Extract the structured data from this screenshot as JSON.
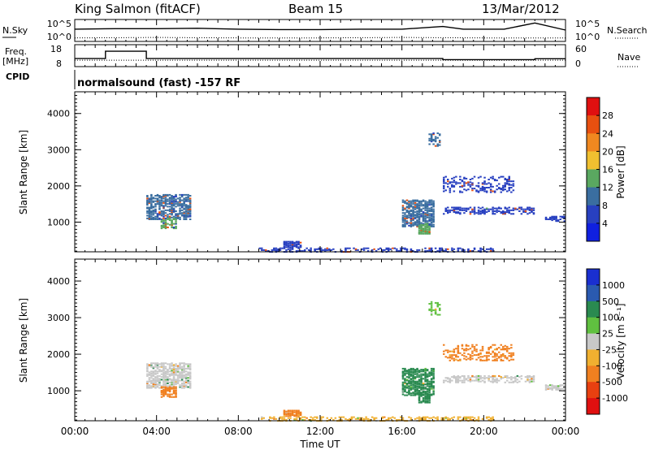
{
  "header": {
    "station": "King Salmon (fitACF)",
    "beam": "Beam 15",
    "date": "13/Mar/2012"
  },
  "labels": {
    "n_sky": "N.Sky",
    "n_search": "N.Search",
    "freq": "Freq.",
    "mhz": "[MHz]",
    "nave": "Nave",
    "cpid": "CPID",
    "cpid_value": "normalsound (fast) -157 RF",
    "time_axis": "Time UT",
    "slant_range": "Slant Range [km]",
    "power_bar": "Power [dB]",
    "velocity_bar": "Velocity [m s⁻¹]"
  },
  "noise_axis": {
    "left_ticks": [
      "10^5",
      "10^0"
    ],
    "right_ticks": [
      "10^5",
      "10^0"
    ]
  },
  "freq_axis": {
    "left_ticks": [
      "18",
      "8"
    ],
    "right_ticks": [
      "60",
      "0"
    ]
  },
  "range_axis": {
    "ticks": [
      "4000",
      "3000",
      "2000",
      "1000"
    ],
    "ylim": [
      180,
      4600
    ],
    "values": [
      4000,
      3000,
      2000,
      1000
    ]
  },
  "time_axis": {
    "ticks": [
      "00:00",
      "04:00",
      "08:00",
      "12:00",
      "16:00",
      "20:00",
      "00:00"
    ],
    "xlim": [
      0,
      24
    ]
  },
  "power_scale": {
    "ticks": [
      "28",
      "24",
      "20",
      "16",
      "12",
      "8",
      "4"
    ],
    "colors": [
      "#e01010",
      "#e85010",
      "#f08820",
      "#f0c030",
      "#5aa860",
      "#3a6ea0",
      "#2840c0",
      "#1020e0"
    ]
  },
  "velocity_scale": {
    "ticks": [
      "1000",
      "500",
      "100",
      "25",
      "-25",
      "-100",
      "-500",
      "-1000"
    ],
    "colors": [
      "#1a2fd0",
      "#2a5ab0",
      "#2a8a50",
      "#60c040",
      "#c8c8c8",
      "#f0b030",
      "#f08020",
      "#e84010",
      "#e01010"
    ]
  },
  "chart_data": [
    {
      "type": "line",
      "title": "",
      "series": [
        {
          "name": "N.Sky",
          "style": "solid",
          "x": [
            0,
            2,
            4,
            6,
            8,
            10,
            12,
            14,
            16,
            18,
            19,
            21,
            22.5,
            24
          ],
          "y": [
            2.8,
            2.9,
            2.9,
            3.0,
            2.8,
            2.7,
            2.7,
            2.8,
            2.8,
            3.4,
            2.8,
            2.8,
            4.2,
            2.6
          ]
        },
        {
          "name": "N.Search",
          "style": "dotted",
          "x": [
            0,
            4,
            8,
            12,
            16,
            20,
            24
          ],
          "y": [
            0.8,
            0.9,
            0.8,
            0.8,
            0.9,
            0.8,
            0.8
          ]
        }
      ],
      "ylim": [
        0,
        5
      ]
    },
    {
      "type": "line",
      "title": "",
      "series": [
        {
          "name": "Freq.",
          "style": "solid",
          "x": [
            0,
            1.5,
            1.5,
            3.5,
            3.5,
            12,
            18,
            18,
            22.5,
            22.5,
            24
          ],
          "y": [
            10.5,
            10.5,
            15.5,
            15.5,
            10.5,
            10.5,
            10.5,
            9.8,
            9.8,
            10.4,
            10.4
          ]
        },
        {
          "name": "Nave",
          "style": "dotted",
          "x": [
            0,
            24
          ],
          "y": [
            9.4,
            9.4
          ]
        }
      ],
      "ylim": [
        5,
        20
      ]
    },
    {
      "type": "scatter",
      "title": "",
      "xlabel": "Time UT",
      "ylabel": "Slant Range [km]",
      "colorbar": "Power [dB]",
      "x_unit": "hours UT",
      "ylim": [
        180,
        4600
      ],
      "clusters": [
        {
          "x": [
            3.5,
            5.6
          ],
          "y": [
            1100,
            1800
          ],
          "density": 0.55,
          "value": 8
        },
        {
          "x": [
            4.2,
            4.9
          ],
          "y": [
            850,
            1150
          ],
          "density": 0.6,
          "value": 12
        },
        {
          "x": [
            10.2,
            11.0
          ],
          "y": [
            330,
            500
          ],
          "density": 0.7,
          "value": 6
        },
        {
          "x": [
            9.0,
            20.5
          ],
          "y": [
            200,
            320
          ],
          "density": 0.35,
          "value": 6
        },
        {
          "x": [
            16.0,
            17.6
          ],
          "y": [
            900,
            1650
          ],
          "density": 0.6,
          "value": 10
        },
        {
          "x": [
            16.8,
            17.4
          ],
          "y": [
            700,
            1000
          ],
          "density": 0.7,
          "value": 14
        },
        {
          "x": [
            17.3,
            17.9
          ],
          "y": [
            3100,
            3500
          ],
          "density": 0.35,
          "value": 8
        },
        {
          "x": [
            18.0,
            22.5
          ],
          "y": [
            1250,
            1450
          ],
          "density": 0.4,
          "value": 6
        },
        {
          "x": [
            18.0,
            21.5
          ],
          "y": [
            1850,
            2300
          ],
          "density": 0.25,
          "value": 6
        },
        {
          "x": [
            23.0,
            24.0
          ],
          "y": [
            1050,
            1200
          ],
          "density": 0.5,
          "value": 6
        }
      ]
    },
    {
      "type": "scatter",
      "title": "",
      "xlabel": "Time UT",
      "ylabel": "Slant Range [km]",
      "colorbar": "Velocity [m s⁻¹]",
      "x_unit": "hours UT",
      "ylim": [
        180,
        4600
      ],
      "clusters": [
        {
          "x": [
            3.5,
            5.6
          ],
          "y": [
            1100,
            1800
          ],
          "density": 0.55,
          "value": 0
        },
        {
          "x": [
            4.2,
            4.9
          ],
          "y": [
            850,
            1150
          ],
          "density": 0.6,
          "value": -300
        },
        {
          "x": [
            10.2,
            11.0
          ],
          "y": [
            330,
            500
          ],
          "density": 0.7,
          "value": -150
        },
        {
          "x": [
            9.0,
            20.5
          ],
          "y": [
            200,
            320
          ],
          "density": 0.35,
          "value": -60
        },
        {
          "x": [
            16.0,
            17.6
          ],
          "y": [
            900,
            1650
          ],
          "density": 0.6,
          "value": 120
        },
        {
          "x": [
            16.8,
            17.4
          ],
          "y": [
            700,
            1000
          ],
          "density": 0.7,
          "value": 180
        },
        {
          "x": [
            17.3,
            17.9
          ],
          "y": [
            3100,
            3500
          ],
          "density": 0.35,
          "value": 60
        },
        {
          "x": [
            18.0,
            22.5
          ],
          "y": [
            1250,
            1450
          ],
          "density": 0.4,
          "value": 0
        },
        {
          "x": [
            18.0,
            21.5
          ],
          "y": [
            1850,
            2300
          ],
          "density": 0.25,
          "value": -150
        },
        {
          "x": [
            23.0,
            24.0
          ],
          "y": [
            1050,
            1200
          ],
          "density": 0.5,
          "value": 0
        }
      ]
    }
  ]
}
